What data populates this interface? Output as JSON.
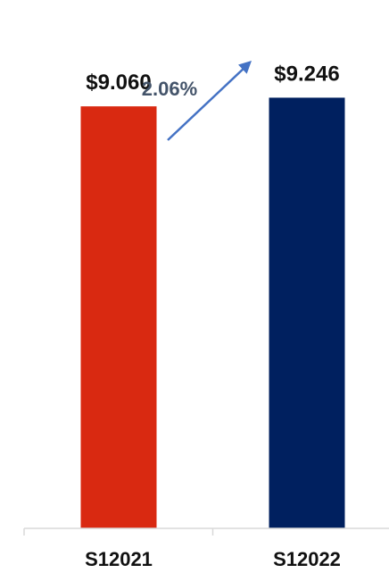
{
  "chart_data": {
    "type": "bar",
    "categories": [
      "S12021",
      "S12022"
    ],
    "values": [
      9.06,
      9.246
    ],
    "value_labels": [
      "$9.060",
      "$9.246"
    ],
    "ylim": [
      0,
      10.5
    ],
    "grid": false,
    "legend": "none",
    "bar_colors": [
      "#D92911",
      "#00205F"
    ],
    "annotation": {
      "text": "2.06%",
      "color": "#44546A",
      "arrow_color": "#4472C4"
    }
  }
}
